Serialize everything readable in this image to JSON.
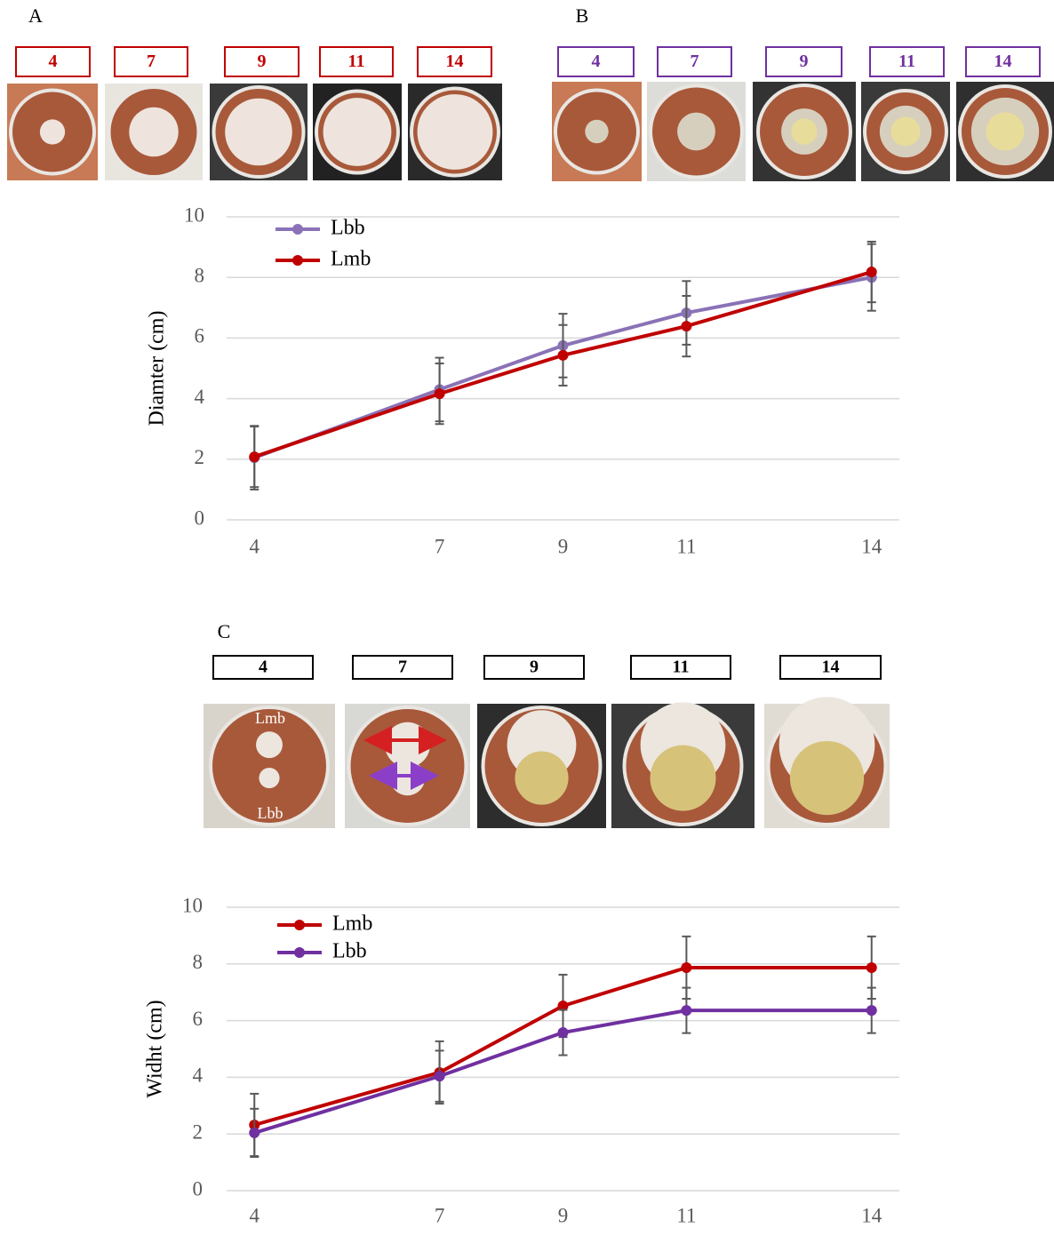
{
  "panels": [
    {
      "label": "A",
      "days": [
        "4",
        "7",
        "9",
        "11",
        "14"
      ]
    },
    {
      "label": "B",
      "days": [
        "4",
        "7",
        "9",
        "11",
        "14"
      ]
    },
    {
      "label": "C",
      "days": [
        "4",
        "7",
        "9",
        "11",
        "14"
      ],
      "photo_labels": [
        "Lmb",
        "Lbb"
      ]
    }
  ],
  "chart_data": [
    {
      "type": "line",
      "y_label": "Diamter (cm)",
      "x": [
        4,
        7,
        9,
        11,
        14
      ],
      "xlim": [
        3.55,
        14.45
      ],
      "xticks": [
        4,
        7,
        9,
        11,
        14
      ],
      "ylim": [
        0,
        10
      ],
      "yticks": [
        0,
        2,
        4,
        6,
        8,
        10
      ],
      "grid": true,
      "legend": "upper left",
      "series": [
        {
          "name": "Lbb",
          "color": "#8a72b6",
          "values": [
            2.05,
            4.3,
            5.75,
            6.83,
            8.0
          ],
          "errors": [
            1.05,
            1.05,
            1.05,
            1.05,
            1.1
          ]
        },
        {
          "name": "Lmb",
          "color": "#c00000",
          "values": [
            2.08,
            4.16,
            5.43,
            6.39,
            8.18
          ],
          "errors": [
            1.0,
            1.0,
            1.0,
            1.0,
            1.0
          ]
        }
      ]
    },
    {
      "type": "line",
      "y_label": "Widht (cm)",
      "x": [
        4,
        7,
        9,
        11,
        14
      ],
      "xlim": [
        3.55,
        14.45
      ],
      "xticks": [
        4,
        7,
        9,
        11,
        14
      ],
      "ylim": [
        0,
        10
      ],
      "yticks": [
        0,
        2,
        4,
        6,
        8,
        10
      ],
      "grid": true,
      "legend": "upper left",
      "series": [
        {
          "name": "Lmb",
          "color": "#c00000",
          "values": [
            2.32,
            4.17,
            6.52,
            7.87,
            7.87
          ],
          "errors": [
            1.1,
            1.1,
            1.1,
            1.1,
            1.1
          ]
        },
        {
          "name": "Lbb",
          "color": "#7030a0",
          "values": [
            2.04,
            4.04,
            5.58,
            6.36,
            6.36
          ],
          "errors": [
            0.85,
            0.9,
            0.8,
            0.8,
            0.8
          ]
        }
      ]
    }
  ]
}
